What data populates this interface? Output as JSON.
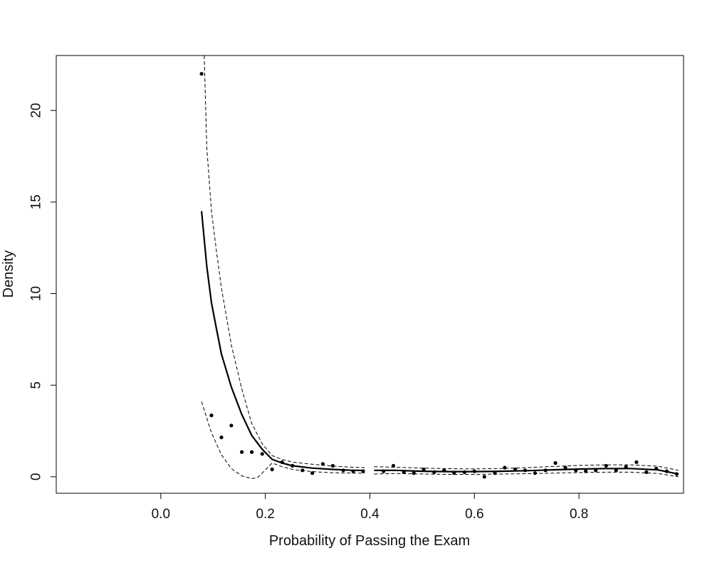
{
  "chart_data": {
    "type": "scatter",
    "title": "",
    "xlabel": "Probability of Passing the Exam",
    "ylabel": "Density",
    "xlim": [
      -0.2,
      1.0
    ],
    "ylim": [
      -0.9,
      23.0
    ],
    "x_ticks": [
      0.0,
      0.2,
      0.4,
      0.6,
      0.8
    ],
    "x_tick_labels": [
      "0.0",
      "0.2",
      "0.4",
      "0.6",
      "0.8"
    ],
    "y_ticks": [
      0,
      5,
      10,
      15,
      20
    ],
    "y_tick_labels": [
      "0",
      "5",
      "10",
      "15",
      "20"
    ],
    "grid": false,
    "points": {
      "x": [
        0.078,
        0.097,
        0.116,
        0.135,
        0.155,
        0.174,
        0.194,
        0.213,
        0.232,
        0.252,
        0.271,
        0.29,
        0.31,
        0.329,
        0.349,
        0.368,
        0.387,
        0.426,
        0.445,
        0.465,
        0.484,
        0.503,
        0.523,
        0.542,
        0.561,
        0.581,
        0.6,
        0.619,
        0.639,
        0.658,
        0.678,
        0.697,
        0.716,
        0.736,
        0.755,
        0.774,
        0.794,
        0.813,
        0.832,
        0.852,
        0.871,
        0.89,
        0.91,
        0.929,
        0.948,
        0.968,
        0.987
      ],
      "y": [
        22.0,
        3.35,
        2.15,
        2.8,
        1.35,
        1.35,
        1.25,
        0.4,
        0.8,
        0.6,
        0.35,
        0.2,
        0.7,
        0.6,
        0.35,
        0.3,
        0.3,
        0.3,
        0.6,
        0.25,
        0.2,
        0.4,
        0.25,
        0.35,
        0.2,
        0.25,
        0.3,
        0.0,
        0.2,
        0.5,
        0.4,
        0.35,
        0.2,
        0.35,
        0.75,
        0.5,
        0.35,
        0.3,
        0.35,
        0.6,
        0.35,
        0.55,
        0.8,
        0.25,
        0.45,
        0.3,
        0.15
      ]
    },
    "series": [
      {
        "style": "solid",
        "segments": [
          {
            "x": [
              0.078,
              0.088,
              0.097,
              0.107,
              0.116,
              0.135,
              0.155,
              0.174,
              0.194,
              0.213,
              0.232,
              0.252,
              0.29,
              0.329,
              0.368,
              0.39
            ],
            "y": [
              14.5,
              11.5,
              9.5,
              8.0,
              6.7,
              4.9,
              3.4,
              2.25,
              1.5,
              0.95,
              0.75,
              0.6,
              0.47,
              0.4,
              0.35,
              0.35
            ]
          },
          {
            "x": [
              0.408,
              0.45,
              0.5,
              0.55,
              0.6,
              0.65,
              0.7,
              0.75,
              0.8,
              0.85,
              0.9,
              0.95,
              0.99
            ],
            "y": [
              0.35,
              0.35,
              0.3,
              0.28,
              0.28,
              0.3,
              0.33,
              0.38,
              0.42,
              0.45,
              0.45,
              0.38,
              0.15
            ]
          }
        ]
      },
      {
        "style": "dashed",
        "segments": [
          {
            "x": [
              0.083,
              0.088,
              0.097,
              0.107,
              0.116,
              0.135,
              0.155,
              0.174,
              0.194,
              0.213,
              0.232,
              0.252,
              0.29,
              0.329,
              0.368,
              0.39
            ],
            "y": [
              23.0,
              18.0,
              14.5,
              12.2,
              10.3,
              7.2,
              4.8,
              2.9,
              1.8,
              1.15,
              0.95,
              0.8,
              0.68,
              0.58,
              0.52,
              0.5
            ]
          },
          {
            "x": [
              0.408,
              0.45,
              0.5,
              0.55,
              0.6,
              0.65,
              0.7,
              0.75,
              0.8,
              0.85,
              0.9,
              0.95,
              0.99
            ],
            "y": [
              0.55,
              0.52,
              0.47,
              0.44,
              0.43,
              0.45,
              0.5,
              0.56,
              0.62,
              0.65,
              0.65,
              0.58,
              0.35
            ]
          }
        ]
      },
      {
        "style": "dashed",
        "segments": [
          {
            "x": [
              0.078,
              0.097,
              0.116,
              0.135,
              0.155,
              0.174,
              0.185,
              0.194,
              0.213,
              0.232,
              0.252,
              0.29,
              0.329,
              0.368,
              0.39
            ],
            "y": [
              4.1,
              2.4,
              1.2,
              0.45,
              0.05,
              -0.1,
              -0.05,
              0.2,
              0.75,
              0.55,
              0.4,
              0.28,
              0.22,
              0.2,
              0.2
            ]
          },
          {
            "x": [
              0.408,
              0.45,
              0.5,
              0.55,
              0.6,
              0.65,
              0.7,
              0.75,
              0.8,
              0.85,
              0.9,
              0.95,
              0.99
            ],
            "y": [
              0.15,
              0.18,
              0.15,
              0.13,
              0.13,
              0.15,
              0.17,
              0.2,
              0.23,
              0.25,
              0.25,
              0.18,
              0.0
            ]
          }
        ]
      }
    ]
  }
}
